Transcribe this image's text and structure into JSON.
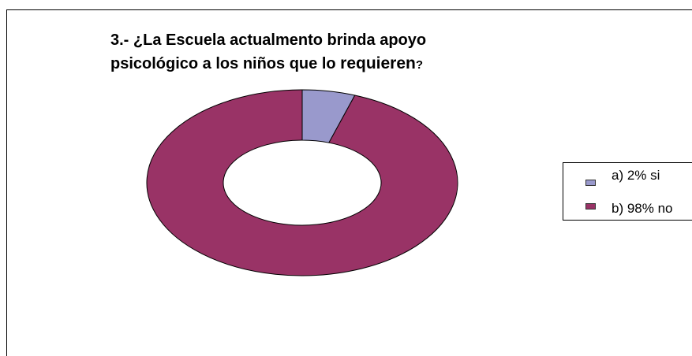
{
  "chart_data": {
    "type": "doughnut",
    "title_part1": "3.- ¿La Escuela actualmento brinda apoyo",
    "title_part2": "psicológico a los niños que lo ",
    "title_part3": "requieren",
    "title_part4": "?",
    "categories": [
      "a) 2% si",
      "b) 98% no"
    ],
    "values": [
      2,
      98
    ],
    "colors": [
      "#9999cc",
      "#993366"
    ],
    "legend_position": "right"
  }
}
